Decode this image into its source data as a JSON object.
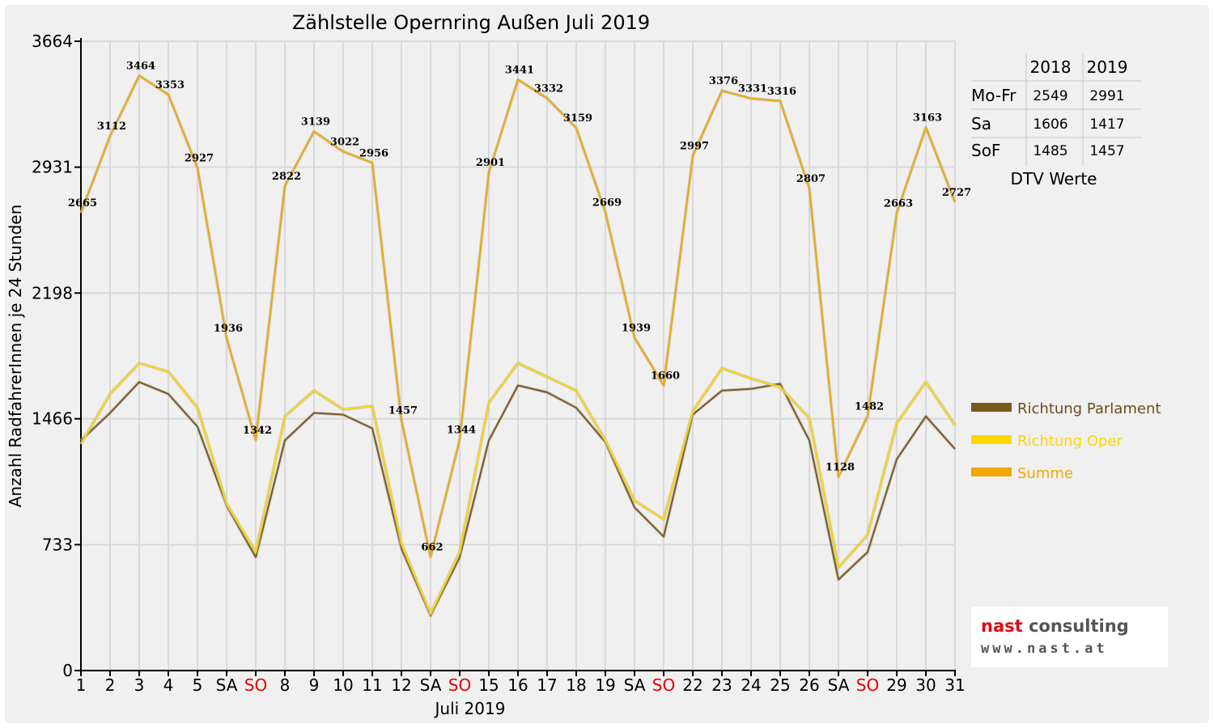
{
  "chart_data": {
    "type": "line",
    "title": "Zählstelle Opernring Außen Juli 2019",
    "xlabel": "Juli 2019",
    "ylabel": "Anzahl RadfahrerInnen je 24 Stunden",
    "ylim": [
      0,
      3664
    ],
    "yticks": [
      "0",
      "733",
      "1466",
      "2198",
      "2931",
      "3664"
    ],
    "categories": [
      "1",
      "2",
      "3",
      "4",
      "5",
      "SA",
      "SO",
      "8",
      "9",
      "10",
      "11",
      "12",
      "SA",
      "SO",
      "15",
      "16",
      "17",
      "18",
      "19",
      "SA",
      "SO",
      "22",
      "23",
      "24",
      "25",
      "26",
      "SA",
      "SO",
      "29",
      "30",
      "31"
    ],
    "sunday_color": "#e00000",
    "grid": true,
    "legend_position": "right",
    "series": [
      {
        "name": "Richtung Parlament",
        "color": "#7b5a1e",
        "values": [
          1340,
          1500,
          1680,
          1610,
          1420,
          960,
          660,
          1340,
          1500,
          1490,
          1410,
          710,
          320,
          660,
          1340,
          1660,
          1620,
          1530,
          1330,
          950,
          780,
          1490,
          1630,
          1640,
          1670,
          1340,
          530,
          690,
          1230,
          1480,
          1290
        ]
      },
      {
        "name": "Richtung Oper",
        "color": "#ffd600",
        "values": [
          1320,
          1610,
          1790,
          1740,
          1530,
          970,
          690,
          1480,
          1630,
          1520,
          1540,
          740,
          330,
          690,
          1560,
          1790,
          1710,
          1630,
          1340,
          990,
          880,
          1510,
          1760,
          1700,
          1650,
          1470,
          600,
          790,
          1440,
          1680,
          1430
        ]
      },
      {
        "name": "Summe",
        "color": "#f0a800",
        "values": [
          2665,
          3112,
          3464,
          3353,
          2927,
          1936,
          1342,
          2822,
          3139,
          3022,
          2956,
          1457,
          662,
          1344,
          2901,
          3441,
          3332,
          3159,
          2669,
          1939,
          1660,
          2997,
          3376,
          3331,
          3316,
          2807,
          1128,
          1482,
          2663,
          3163,
          2727
        ]
      }
    ],
    "data_labels": [
      "2665",
      "3112",
      "3464",
      "3353",
      "2927",
      "1936",
      "1342",
      "2822",
      "3139",
      "3022",
      "2956",
      "1457",
      "662",
      "1344",
      "2901",
      "3441",
      "3332",
      "3159",
      "2669",
      "1939",
      "1660",
      "2997",
      "3376",
      "3331",
      "3316",
      "2807",
      "1128",
      "1482",
      "2663",
      "3163",
      "2727"
    ]
  },
  "dtv_table": {
    "caption": "DTV Werte",
    "years": [
      "2018",
      "2019"
    ],
    "rows": [
      {
        "label": "Mo-Fr",
        "values": [
          "2549",
          "2991"
        ]
      },
      {
        "label": "Sa",
        "values": [
          "1606",
          "1417"
        ]
      },
      {
        "label": "SoF",
        "values": [
          "1485",
          "1457"
        ]
      }
    ]
  },
  "logo": {
    "name_part1": "nast ",
    "name_part2": "consulting",
    "url": "www.nast.at"
  }
}
